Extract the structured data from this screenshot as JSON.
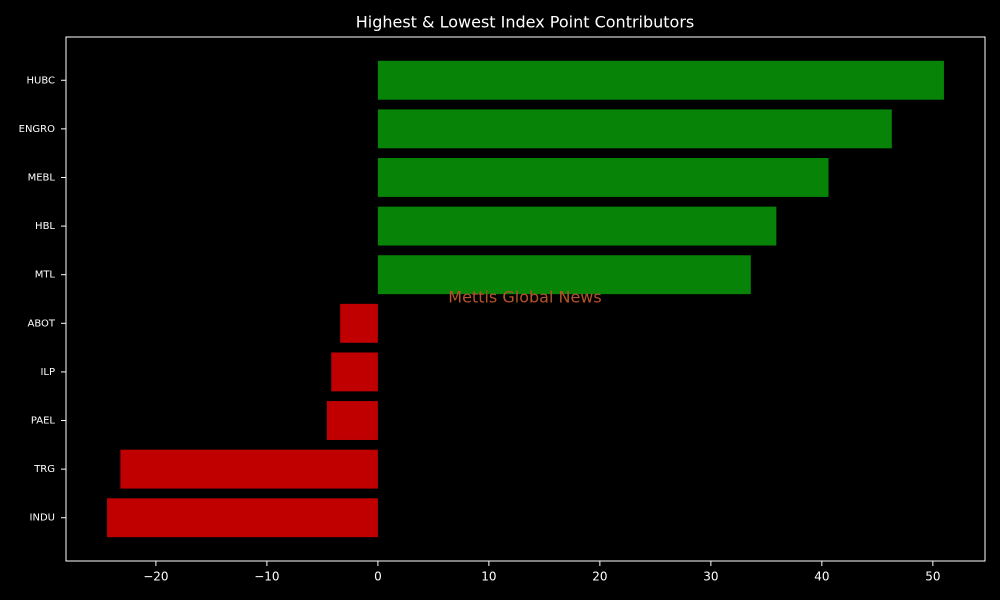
{
  "chart_data": {
    "type": "barh",
    "title": "Highest & Lowest Index Point Contributors",
    "annotation": "Mettis Global News",
    "categories": [
      "HUBC",
      "ENGRO",
      "MEBL",
      "HBL",
      "MTL",
      "ABOT",
      "ILP",
      "PAEL",
      "TRG",
      "INDU"
    ],
    "values": [
      51.0,
      46.3,
      40.6,
      35.9,
      33.6,
      -3.4,
      -4.2,
      -4.6,
      -23.2,
      -24.4
    ],
    "colors": [
      "#078407",
      "#078407",
      "#078407",
      "#078407",
      "#078407",
      "#c00000",
      "#c00000",
      "#c00000",
      "#c00000",
      "#c00000"
    ],
    "xlim": [
      -28.1,
      54.7
    ],
    "xticks": [
      {
        "value": -20,
        "label": "−20"
      },
      {
        "value": -10,
        "label": "−10"
      },
      0,
      10,
      20,
      30,
      40,
      50
    ],
    "grid": false
  }
}
